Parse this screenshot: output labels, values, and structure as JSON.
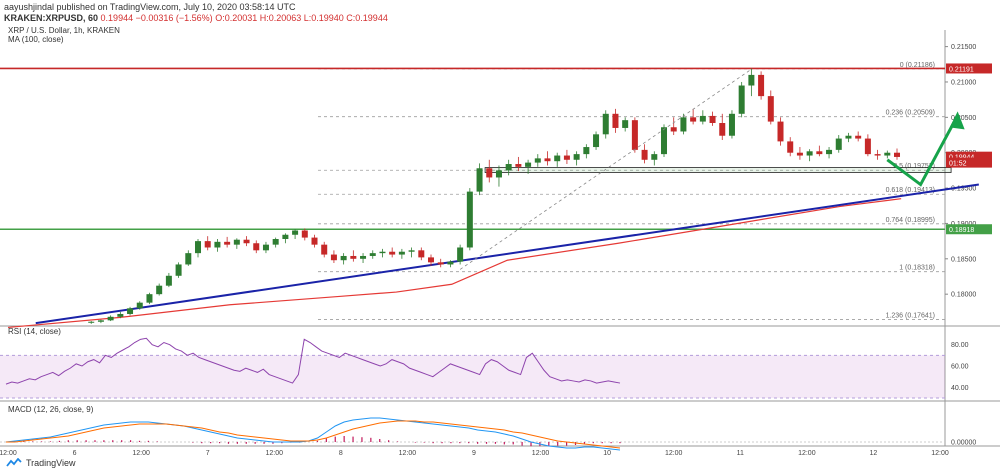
{
  "header": {
    "publisher": "aayushjindal published on TradingView.com, July 10, 2020 03:58:14 UTC",
    "symbol": "KRAKEN:XRPUSD, 60",
    "price": "0.19944",
    "change": "−0.00316 (−1.56%)",
    "ohlc": "O:0.20031 H:0.20063 L:0.19940 C:0.19944"
  },
  "legend": {
    "title": "XRP / U.S. Dollar, 1h, KRAKEN",
    "ma": "MA (100, close)",
    "rsi": "RSI (14, close)",
    "macd": "MACD (12, 26, close, 9)"
  },
  "footer": {
    "brand": "TradingView"
  },
  "colors": {
    "up": "#2e7d32",
    "down": "#c62828",
    "ma": "#e53935",
    "trend": "#1a23a8",
    "arrow": "#16a34a",
    "support": "#43a047",
    "resistance": "#c62828",
    "rsi": "#8e44ad",
    "macd": "#2196f3",
    "signal": "#ff6d00"
  },
  "chart_data": [
    {
      "type": "line",
      "role": "price",
      "ylim": [
        0.1755,
        0.2165
      ],
      "yticks": [
        "0.21500",
        "0.21000",
        "0.20500",
        "0.20000",
        "0.19500",
        "0.19000",
        "0.18500",
        "0.18000"
      ],
      "ytick_values": [
        0.215,
        0.21,
        0.205,
        0.2,
        0.195,
        0.19,
        0.185,
        0.18
      ],
      "x_labels": [
        "12:00",
        "6",
        "12:00",
        "7",
        "12:00",
        "8",
        "12:00",
        "9",
        "12:00",
        "10",
        "12:00",
        "11",
        "12:00",
        "12",
        "12:00"
      ],
      "x_label_index": [
        0,
        24,
        48,
        72,
        96,
        120,
        144,
        168,
        192,
        216,
        240,
        264,
        288,
        312,
        336
      ],
      "x_bars_total": 336,
      "ohlc": [
        [
          0.176,
          0.1762,
          0.1758,
          0.1761
        ],
        [
          0.1761,
          0.1764,
          0.1759,
          0.1763
        ],
        [
          0.1763,
          0.177,
          0.1762,
          0.1768
        ],
        [
          0.1768,
          0.1775,
          0.1766,
          0.1772
        ],
        [
          0.1772,
          0.1782,
          0.177,
          0.178
        ],
        [
          0.178,
          0.179,
          0.1778,
          0.1788
        ],
        [
          0.1788,
          0.1802,
          0.1786,
          0.18
        ],
        [
          0.18,
          0.1815,
          0.1798,
          0.1812
        ],
        [
          0.1812,
          0.183,
          0.181,
          0.1826
        ],
        [
          0.1826,
          0.1845,
          0.1823,
          0.1842
        ],
        [
          0.1842,
          0.1862,
          0.184,
          0.1858
        ],
        [
          0.1858,
          0.1878,
          0.1852,
          0.1875
        ],
        [
          0.1875,
          0.1882,
          0.1862,
          0.1866
        ],
        [
          0.1866,
          0.1878,
          0.186,
          0.1874
        ],
        [
          0.1874,
          0.1881,
          0.1866,
          0.187
        ],
        [
          0.187,
          0.1879,
          0.1864,
          0.1877
        ],
        [
          0.1877,
          0.1882,
          0.1868,
          0.1872
        ],
        [
          0.1872,
          0.1876,
          0.1858,
          0.1862
        ],
        [
          0.1862,
          0.1874,
          0.1858,
          0.187
        ],
        [
          0.187,
          0.188,
          0.1866,
          0.1878
        ],
        [
          0.1878,
          0.1886,
          0.1872,
          0.1884
        ],
        [
          0.1884,
          0.1892,
          0.1878,
          0.189
        ],
        [
          0.189,
          0.1893,
          0.1876,
          0.188
        ],
        [
          0.188,
          0.1884,
          0.1866,
          0.187
        ],
        [
          0.187,
          0.1874,
          0.1852,
          0.1856
        ],
        [
          0.1856,
          0.1862,
          0.1844,
          0.1848
        ],
        [
          0.1848,
          0.1858,
          0.1842,
          0.1854
        ],
        [
          0.1854,
          0.1862,
          0.1846,
          0.185
        ],
        [
          0.185,
          0.1858,
          0.1844,
          0.1854
        ],
        [
          0.1854,
          0.1862,
          0.185,
          0.1858
        ],
        [
          0.1858,
          0.1864,
          0.1852,
          0.186
        ],
        [
          0.186,
          0.1866,
          0.1852,
          0.1856
        ],
        [
          0.1856,
          0.1864,
          0.185,
          0.186
        ],
        [
          0.186,
          0.1866,
          0.1852,
          0.1862
        ],
        [
          0.1862,
          0.1866,
          0.1848,
          0.1852
        ],
        [
          0.1852,
          0.1856,
          0.184,
          0.1845
        ],
        [
          0.1845,
          0.185,
          0.1838,
          0.1842
        ],
        [
          0.1842,
          0.1848,
          0.1838,
          0.1846
        ],
        [
          0.1846,
          0.187,
          0.1842,
          0.1866
        ],
        [
          0.1866,
          0.195,
          0.1862,
          0.1945
        ],
        [
          0.1945,
          0.1985,
          0.194,
          0.1978
        ],
        [
          0.1978,
          0.199,
          0.1958,
          0.1965
        ],
        [
          0.1965,
          0.1982,
          0.1952,
          0.1975
        ],
        [
          0.1975,
          0.199,
          0.1968,
          0.1984
        ],
        [
          0.1984,
          0.1994,
          0.1974,
          0.198
        ],
        [
          0.198,
          0.199,
          0.197,
          0.1986
        ],
        [
          0.1986,
          0.1998,
          0.198,
          0.1992
        ],
        [
          0.1992,
          0.2002,
          0.1982,
          0.1988
        ],
        [
          0.1988,
          0.2,
          0.198,
          0.1996
        ],
        [
          0.1996,
          0.2004,
          0.1984,
          0.199
        ],
        [
          0.199,
          0.2002,
          0.1982,
          0.1998
        ],
        [
          0.1998,
          0.2012,
          0.1992,
          0.2008
        ],
        [
          0.2008,
          0.203,
          0.2004,
          0.2026
        ],
        [
          0.2026,
          0.206,
          0.202,
          0.2055
        ],
        [
          0.2055,
          0.2062,
          0.2028,
          0.2035
        ],
        [
          0.2035,
          0.205,
          0.203,
          0.2046
        ],
        [
          0.2046,
          0.205,
          0.2,
          0.2004
        ],
        [
          0.2004,
          0.2012,
          0.1985,
          0.199
        ],
        [
          0.199,
          0.2002,
          0.1982,
          0.1998
        ],
        [
          0.1998,
          0.204,
          0.1994,
          0.2036
        ],
        [
          0.2036,
          0.205,
          0.2025,
          0.203
        ],
        [
          0.203,
          0.2055,
          0.2026,
          0.205
        ],
        [
          0.205,
          0.2062,
          0.204,
          0.2044
        ],
        [
          0.2044,
          0.206,
          0.204,
          0.2052
        ],
        [
          0.2052,
          0.2058,
          0.2038,
          0.2042
        ],
        [
          0.2042,
          0.2055,
          0.2018,
          0.2024
        ],
        [
          0.2024,
          0.206,
          0.202,
          0.2055
        ],
        [
          0.2055,
          0.21,
          0.205,
          0.2095
        ],
        [
          0.2095,
          0.2119,
          0.208,
          0.211
        ],
        [
          0.211,
          0.2115,
          0.2075,
          0.208
        ],
        [
          0.208,
          0.2088,
          0.204,
          0.2044
        ],
        [
          0.2044,
          0.205,
          0.201,
          0.2016
        ],
        [
          0.2016,
          0.2022,
          0.1995,
          0.2
        ],
        [
          0.2,
          0.2008,
          0.199,
          0.1996
        ],
        [
          0.1996,
          0.2005,
          0.1988,
          0.2002
        ],
        [
          0.2002,
          0.201,
          0.1995,
          0.1998
        ],
        [
          0.1998,
          0.2008,
          0.1992,
          0.2004
        ],
        [
          0.2004,
          0.2025,
          0.2,
          0.202
        ],
        [
          0.202,
          0.2028,
          0.2015,
          0.2024
        ],
        [
          0.2024,
          0.203,
          0.2016,
          0.202
        ],
        [
          0.202,
          0.2026,
          0.1995,
          0.1998
        ],
        [
          0.1998,
          0.2004,
          0.199,
          0.1996
        ],
        [
          0.1996,
          0.2003,
          0.1992,
          0.2
        ],
        [
          0.2,
          0.2006,
          0.199,
          0.1994
        ]
      ],
      "ma100": [
        [
          0,
          0.1753
        ],
        [
          40,
          0.1767
        ],
        [
          80,
          0.1785
        ],
        [
          120,
          0.1797
        ],
        [
          140,
          0.1803
        ],
        [
          160,
          0.1814
        ],
        [
          180,
          0.1848
        ],
        [
          220,
          0.1872
        ],
        [
          260,
          0.1898
        ],
        [
          300,
          0.1924
        ],
        [
          322,
          0.1935
        ]
      ],
      "trendline": [
        [
          10,
          0.1759
        ],
        [
          350,
          0.1955
        ]
      ],
      "horizontal_levels": [
        {
          "value": 0.21191,
          "label": "0.21191",
          "color": "resistance"
        },
        {
          "value": 0.18918,
          "label": "0.18918",
          "color": "support"
        }
      ],
      "fib_levels": [
        {
          "ratio": "0",
          "value": 0.21186,
          "label": "0 (0.21186)"
        },
        {
          "ratio": "0.236",
          "value": 0.20509,
          "label": "0.236 (0.20509)"
        },
        {
          "ratio": "0.5",
          "value": 0.19752,
          "label": "0.5 (0.19752)"
        },
        {
          "ratio": "0.618",
          "value": 0.19413,
          "label": "0.618 (0.19413)"
        },
        {
          "ratio": "0.764",
          "value": 0.18995,
          "label": "0.764 (0.18995)"
        },
        {
          "ratio": "1",
          "value": 0.18318,
          "label": "1 (0.18318)"
        },
        {
          "ratio": "1.236",
          "value": 0.17641,
          "label": "1.236 (0.17641)"
        }
      ],
      "support_box": {
        "x0": 172,
        "x1": 340,
        "y0": 0.1972,
        "y1": 0.1979
      },
      "price_tags": [
        {
          "value": 0.21191,
          "label": "0.21191",
          "bg": "#c62828"
        },
        {
          "value": 0.19944,
          "label": "0.19944",
          "bg": "#c62828"
        },
        {
          "value": 0.1986,
          "label": "01:52",
          "bg": "#c62828"
        },
        {
          "value": 0.18918,
          "label": "0.18918",
          "bg": "#43a047"
        }
      ],
      "forecast_arrow": [
        [
          317,
          0.199
        ],
        [
          329,
          0.1955
        ],
        [
          342,
          0.205
        ]
      ]
    },
    {
      "type": "line",
      "role": "rsi",
      "ylim": [
        30,
        90
      ],
      "yticks": [
        "80.00",
        "60.00",
        "40.00"
      ],
      "ytick_values": [
        80,
        60,
        40
      ],
      "band": [
        30,
        70
      ],
      "values": [
        43,
        45,
        44,
        46,
        48,
        47,
        50,
        52,
        54,
        51,
        55,
        58,
        62,
        60,
        64,
        66,
        63,
        70,
        68,
        72,
        75,
        78,
        82,
        85,
        86,
        80,
        78,
        82,
        80,
        76,
        74,
        70,
        72,
        68,
        66,
        64,
        62,
        60,
        58,
        56,
        55,
        58,
        56,
        54,
        57,
        52,
        50,
        48,
        46,
        44,
        52,
        85,
        82,
        78,
        74,
        72,
        70,
        68,
        72,
        70,
        68,
        66,
        64,
        62,
        60,
        62,
        66,
        64,
        62,
        58,
        56,
        54,
        52,
        50,
        54,
        58,
        62,
        60,
        58,
        56,
        54,
        52,
        62,
        66,
        64,
        60,
        56,
        54,
        52,
        68,
        72,
        64,
        56,
        50,
        48,
        46,
        47,
        46,
        45,
        47,
        46,
        44,
        45,
        46,
        45,
        44
      ]
    },
    {
      "type": "line",
      "role": "macd",
      "yticks": [
        "0.00000"
      ],
      "ytick_values": [
        0
      ],
      "macd": [
        0,
        1,
        2,
        3,
        4,
        5,
        7,
        9,
        11,
        13,
        15,
        17,
        18,
        19,
        20,
        20,
        20,
        19,
        18,
        17,
        16,
        14,
        12,
        10,
        8,
        6,
        4,
        3,
        2,
        1,
        0,
        0,
        0,
        0,
        1,
        4,
        10,
        16,
        20,
        22,
        23,
        24,
        24,
        23,
        22,
        21,
        20,
        19,
        18,
        17,
        16,
        15,
        14,
        12,
        11,
        10,
        8,
        6,
        3,
        0,
        -2,
        -4,
        -5,
        -6,
        -6,
        -5,
        -5,
        -6,
        -7,
        -8
      ],
      "signal": [
        0,
        0,
        1,
        2,
        3,
        4,
        5,
        6,
        8,
        10,
        12,
        14,
        15,
        16,
        17,
        18,
        18,
        18,
        18,
        17,
        16,
        15,
        14,
        12,
        10,
        9,
        7,
        6,
        5,
        4,
        3,
        2,
        1,
        1,
        1,
        2,
        4,
        7,
        10,
        13,
        15,
        17,
        19,
        20,
        21,
        21,
        21,
        20,
        20,
        19,
        18,
        17,
        16,
        15,
        14,
        13,
        12,
        10,
        9,
        7,
        5,
        3,
        1,
        0,
        -1,
        -2,
        -3,
        -4,
        -5,
        -6
      ]
    }
  ]
}
